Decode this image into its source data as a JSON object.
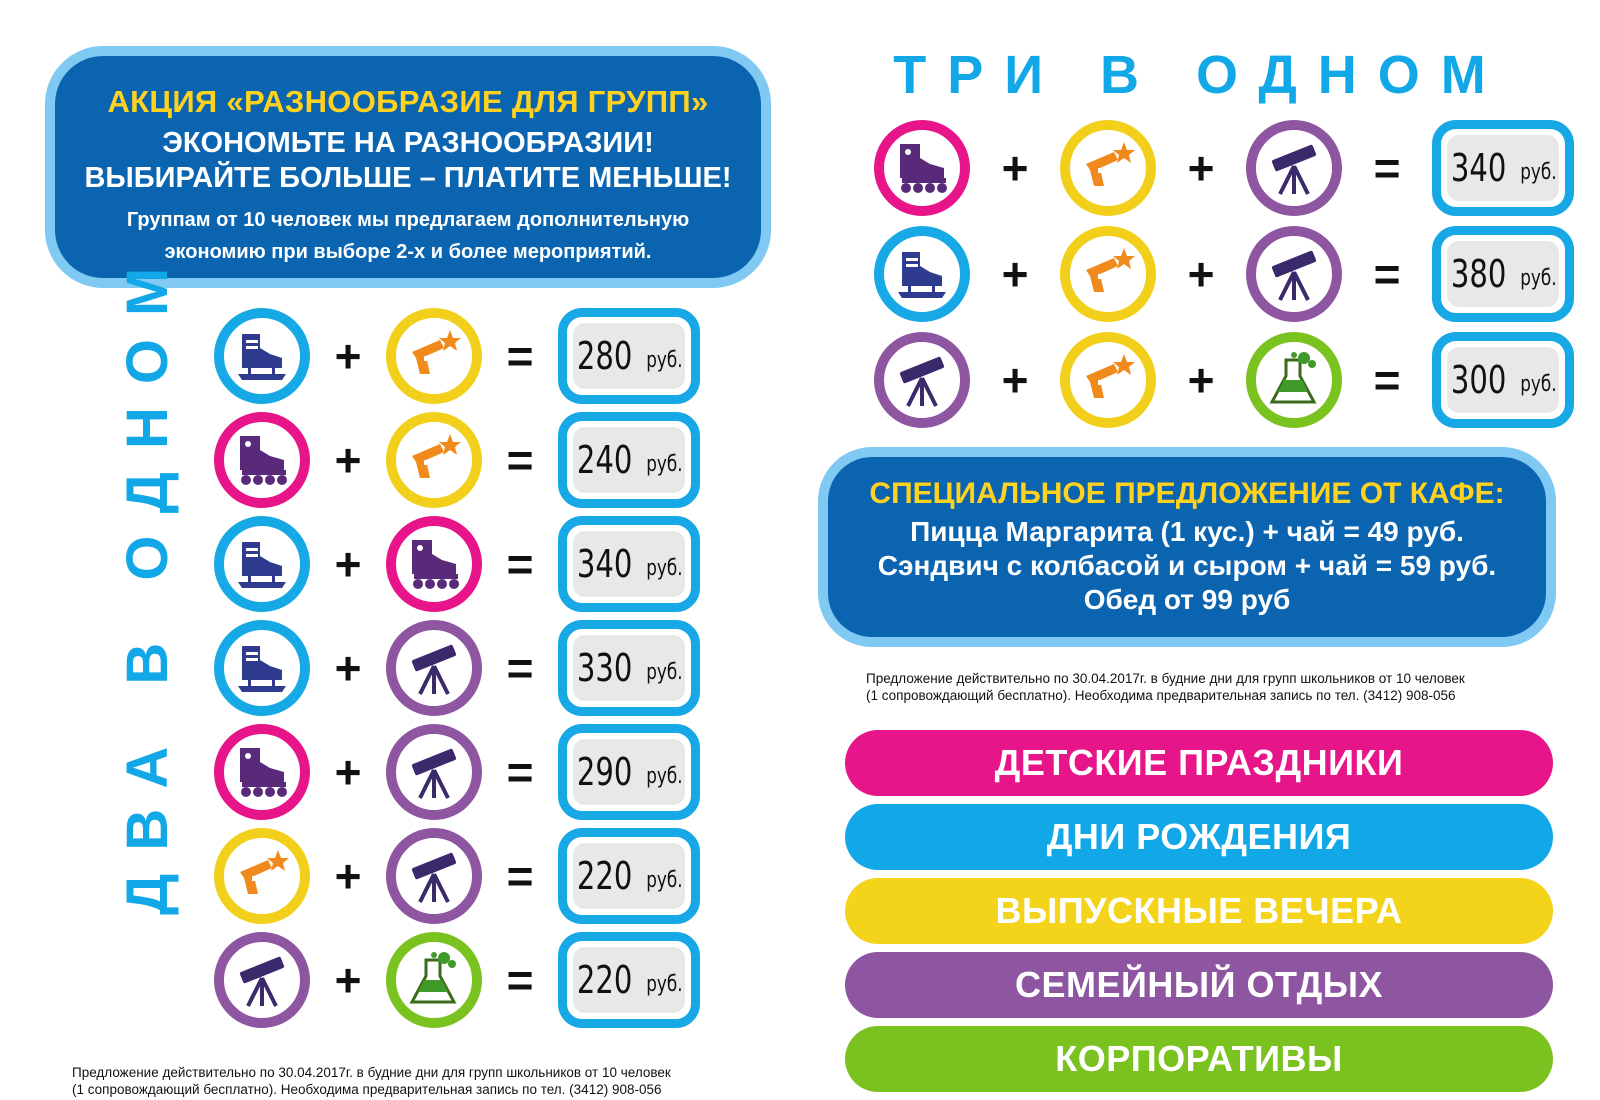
{
  "promo": {
    "title": "АКЦИЯ «РАЗНООБРАЗИЕ ДЛЯ ГРУПП»",
    "subtitle_line1": "ЭКОНОМЬТЕ НА РАЗНООБРАЗИИ!",
    "subtitle_line2": "ВЫБИРАЙТЕ БОЛЬШЕ – ПЛАТИТЕ МЕНЬШЕ!",
    "text_line1": "Группам от 10 человек мы предлагаем дополнительную",
    "text_line2": "экономию при выборе 2-х и более мероприятий."
  },
  "two_in_one": {
    "title": "ДВА В ОДНОМ",
    "combos": [
      {
        "icons": [
          "skate-icon",
          "laser-icon"
        ],
        "price": "280",
        "unit": "руб."
      },
      {
        "icons": [
          "roller-icon",
          "laser-icon"
        ],
        "price": "240",
        "unit": "руб."
      },
      {
        "icons": [
          "skate-icon",
          "roller-icon"
        ],
        "price": "340",
        "unit": "руб."
      },
      {
        "icons": [
          "skate-icon",
          "telescope-icon"
        ],
        "price": "330",
        "unit": "руб."
      },
      {
        "icons": [
          "roller-icon",
          "telescope-icon"
        ],
        "price": "290",
        "unit": "руб."
      },
      {
        "icons": [
          "laser-icon",
          "telescope-icon"
        ],
        "price": "220",
        "unit": "руб."
      },
      {
        "icons": [
          "telescope-icon",
          "chemistry-icon"
        ],
        "price": "220",
        "unit": "руб."
      }
    ]
  },
  "three_in_one": {
    "title": "ТРИ В ОДНОМ",
    "combos": [
      {
        "icons": [
          "roller-icon",
          "laser-icon",
          "telescope-icon"
        ],
        "price": "340",
        "unit": "руб."
      },
      {
        "icons": [
          "skate-icon",
          "laser-icon",
          "telescope-icon"
        ],
        "price": "380",
        "unit": "руб."
      },
      {
        "icons": [
          "telescope-icon",
          "laser-icon",
          "chemistry-icon"
        ],
        "price": "300",
        "unit": "руб."
      }
    ]
  },
  "operators": {
    "plus": "+",
    "equals": "="
  },
  "cafe": {
    "title": "СПЕЦИАЛЬНОЕ ПРЕДЛОЖЕНИЕ ОТ КАФЕ:",
    "line1": "Пицца Маргарита (1 кус.) + чай  = 49 руб.",
    "line2": "Сэндвич с колбасой и сыром + чай = 59 руб.",
    "line3": "Обед от 99 руб"
  },
  "note": {
    "line1": "Предложение действительно по 30.04.2017г. в будние дни для групп школьников от 10 человек",
    "line2": "(1 сопровождающий бесплатно). Необходима предварительная запись по тел. (3412) 908-056"
  },
  "bands": [
    {
      "label": "ДЕТСКИЕ ПРАЗДНИКИ",
      "color": "#e6158a"
    },
    {
      "label": "ДНИ РОЖДЕНИЯ",
      "color": "#12a8e8"
    },
    {
      "label": "ВЫПУСКНЫЕ ВЕЧЕРА",
      "color": "#f4d31b"
    },
    {
      "label": "СЕМЕЙНЫЙ ОТДЫХ",
      "color": "#8e56a1"
    },
    {
      "label": "КОРПОРАТИВЫ",
      "color": "#7ac21f"
    }
  ]
}
